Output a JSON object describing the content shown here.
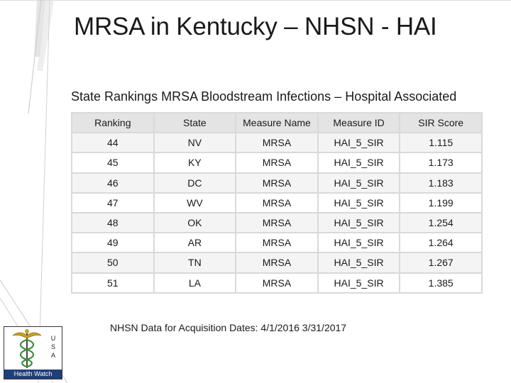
{
  "slide": {
    "title": "MRSA in Kentucky – NHSN - HAI",
    "subtitle": "State Rankings MRSA Bloodstream Infections – Hospital Associated",
    "footnote": "NHSN Data for Acquisition Dates: 4/1/2016 3/31/2017"
  },
  "table": {
    "headers": [
      "Ranking",
      "State",
      "Measure Name",
      "Measure ID",
      "SIR Score"
    ],
    "rows": [
      [
        "44",
        "NV",
        "MRSA",
        "HAI_5_SIR",
        "1.115"
      ],
      [
        "45",
        "KY",
        "MRSA",
        "HAI_5_SIR",
        "1.173"
      ],
      [
        "46",
        "DC",
        "MRSA",
        "HAI_5_SIR",
        "1.183"
      ],
      [
        "47",
        "WV",
        "MRSA",
        "HAI_5_SIR",
        "1.199"
      ],
      [
        "48",
        "OK",
        "MRSA",
        "HAI_5_SIR",
        "1.254"
      ],
      [
        "49",
        "AR",
        "MRSA",
        "HAI_5_SIR",
        "1.264"
      ],
      [
        "50",
        "TN",
        "MRSA",
        "HAI_5_SIR",
        "1.267"
      ],
      [
        "51",
        "LA",
        "MRSA",
        "HAI_5_SIR",
        "1.385"
      ]
    ]
  },
  "logo": {
    "letters": [
      "U",
      "S",
      "A"
    ],
    "text": "Health Watch",
    "icon": "caduceus-icon"
  },
  "colors": {
    "header_bg": "#e4e4e4",
    "row_alt_bg": "#f4f4f4",
    "logo_band": "#1f3f7a",
    "logo_accent": "#c9a227"
  }
}
